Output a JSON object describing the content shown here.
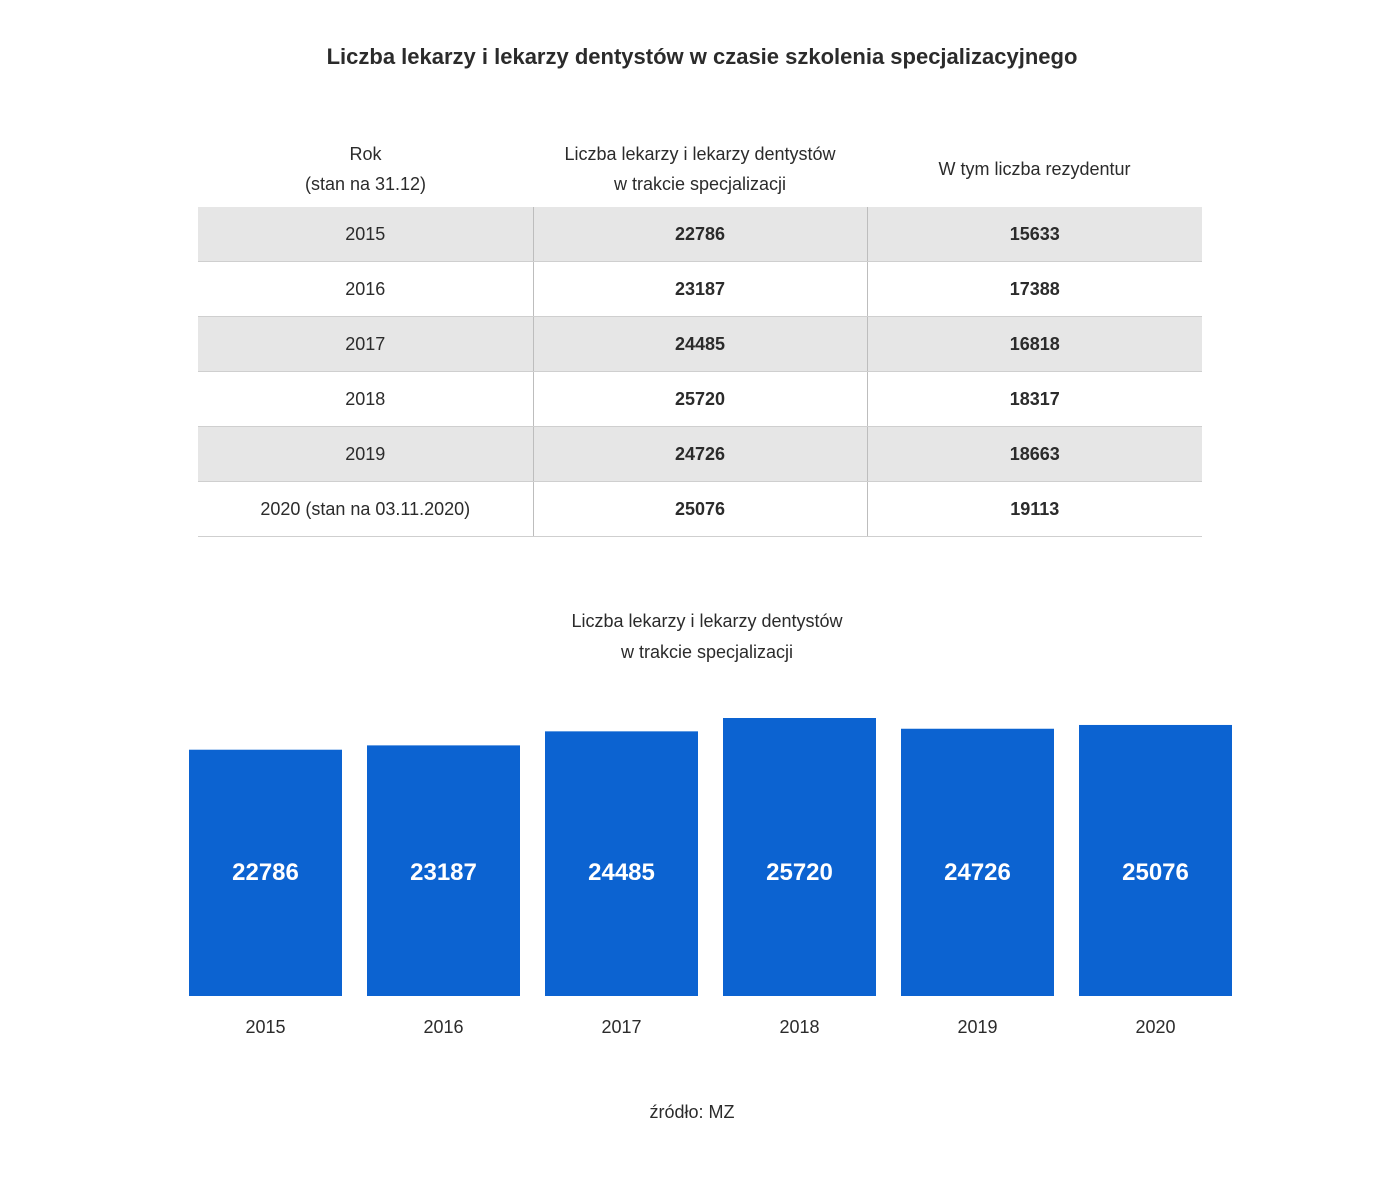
{
  "title": "Liczba lekarzy i lekarzy dentystów w czasie szkolenia specjalizacyjnego",
  "table": {
    "headers": [
      [
        "Rok",
        "(stan na 31.12)"
      ],
      [
        "Liczba lekarzy i lekarzy dentystów",
        "w trakcie specjalizacji"
      ],
      [
        "W tym liczba rezydentur"
      ]
    ],
    "rows": [
      {
        "year": "2015",
        "doctors": "22786",
        "residencies": "15633"
      },
      {
        "year": "2016",
        "doctors": "23187",
        "residencies": "17388"
      },
      {
        "year": "2017",
        "doctors": "24485",
        "residencies": "16818"
      },
      {
        "year": "2018",
        "doctors": "25720",
        "residencies": "18317"
      },
      {
        "year": "2019",
        "doctors": "24726",
        "residencies": "18663"
      },
      {
        "year": "2020 (stan na 03.11.2020)",
        "doctors": "25076",
        "residencies": "19113"
      }
    ],
    "shade_color": "#e6e6e6"
  },
  "chart_data": {
    "type": "bar",
    "title": [
      "Liczba lekarzy i lekarzy dentystów",
      "w trakcie specjalizacji"
    ],
    "categories": [
      "2015",
      "2016",
      "2017",
      "2018",
      "2019",
      "2020"
    ],
    "values": [
      22786,
      23187,
      24485,
      25720,
      24726,
      25076
    ],
    "ylim": [
      0,
      25720
    ],
    "grid": false,
    "axis_visible": false,
    "data_labels": "inside-bar",
    "bar_color": "#0c63d1",
    "label_color": "#ffffff"
  },
  "source": "źródło: MZ"
}
